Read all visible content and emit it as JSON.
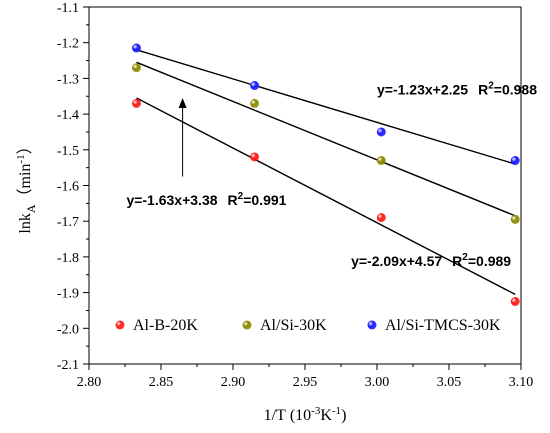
{
  "chart_data": {
    "type": "scatter",
    "title": "",
    "xlabel": "1/T",
    "xlabel_unit": "(10",
    "xlabel_unit_exp1": "-3",
    "xlabel_unit_mid": "K",
    "xlabel_unit_exp2": "-1",
    "xlabel_unit_end": ")",
    "ylabel_main": "lnk",
    "ylabel_sub": "A",
    "ylabel_unit": "（min",
    "ylabel_unit_exp": "-1",
    "ylabel_unit_end": "）",
    "xlim": [
      2.8,
      3.1
    ],
    "ylim": [
      -2.1,
      -1.1
    ],
    "x_ticks": [
      "2.80",
      "2.85",
      "2.90",
      "2.95",
      "3.00",
      "3.05",
      "3.10"
    ],
    "y_ticks": [
      "-1.1",
      "-1.2",
      "-1.3",
      "-1.4",
      "-1.5",
      "-1.6",
      "-1.7",
      "-1.8",
      "-1.9",
      "-2.0",
      "-2.1"
    ],
    "grid": false,
    "legend_position": "bottom",
    "series": [
      {
        "name": "Al-B-20K",
        "color": "#ff1a1a",
        "x": [
          2.833,
          2.915,
          3.003,
          3.096
        ],
        "y": [
          -1.37,
          -1.52,
          -1.69,
          -1.925
        ],
        "fit": {
          "slope": -2.09,
          "intercept": 4.57,
          "x_range": [
            2.833,
            3.096
          ],
          "y_range": [
            -1.355,
            -1.905
          ]
        },
        "equation": "y=-2.09x+4.57",
        "r2_prefix": "R",
        "r2_exp": "2",
        "r2_value": "=0.989"
      },
      {
        "name": "Al/Si-30K",
        "color": "#8a8a00",
        "x": [
          2.833,
          2.915,
          3.003,
          3.096
        ],
        "y": [
          -1.27,
          -1.37,
          -1.53,
          -1.695
        ],
        "fit": {
          "slope": -1.63,
          "intercept": 3.38,
          "x_range": [
            2.833,
            3.096
          ],
          "y_range": [
            -1.255,
            -1.685
          ]
        },
        "equation": "y=-1.63x+3.38",
        "r2_prefix": "R",
        "r2_exp": "2",
        "r2_value": "=0.991"
      },
      {
        "name": "Al/Si-TMCS-30K",
        "color": "#1a1aff",
        "x": [
          2.833,
          2.915,
          3.003,
          3.096
        ],
        "y": [
          -1.215,
          -1.32,
          -1.45,
          -1.53
        ],
        "fit": {
          "slope": -1.23,
          "intercept": 2.25,
          "x_range": [
            2.833,
            3.096
          ],
          "y_range": [
            -1.22,
            -1.54
          ]
        },
        "equation": "y=-1.23x+2.25",
        "r2_prefix": "R",
        "r2_exp": "2",
        "r2_value": "=0.988"
      }
    ],
    "annotations": [
      {
        "series_index": 2,
        "x": 3.0,
        "y": -1.345
      },
      {
        "series_index": 1,
        "x": 2.826,
        "y": -1.655,
        "arrow": {
          "x1": 2.865,
          "y1": -1.575,
          "x2": 2.865,
          "y2": -1.355
        }
      },
      {
        "series_index": 0,
        "x": 2.982,
        "y": -1.825
      }
    ]
  }
}
